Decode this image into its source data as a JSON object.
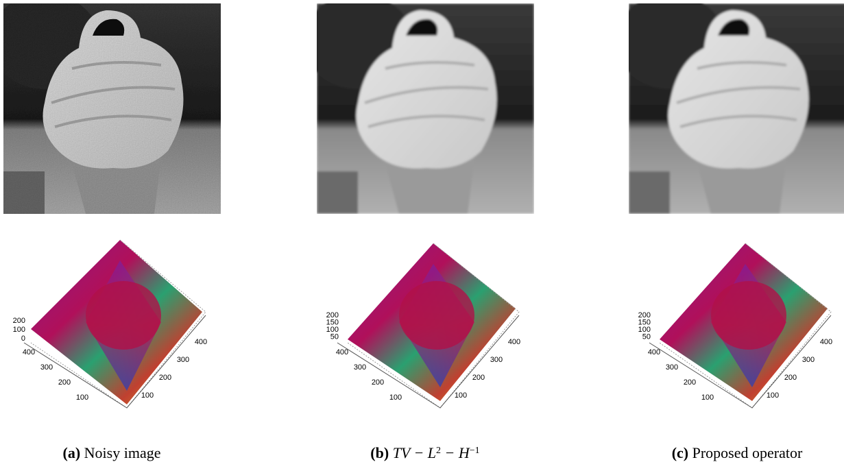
{
  "panels": [
    {
      "label": "(a)",
      "caption_parts": [
        {
          "text": "Noisy image"
        }
      ],
      "z_ticks": [
        200,
        100,
        0
      ],
      "left_ticks": [
        400,
        300,
        200,
        100
      ],
      "right_ticks": [
        400,
        300,
        200,
        100
      ]
    },
    {
      "label": "(b)",
      "caption_parts": [
        {
          "text": "TV − L"
        },
        {
          "text": "2",
          "sup": true
        },
        {
          "text": " − H"
        },
        {
          "text": "−1",
          "sup": true
        }
      ],
      "z_ticks": [
        200,
        150,
        100,
        50
      ],
      "left_ticks": [
        400,
        300,
        200,
        100
      ],
      "right_ticks": [
        400,
        300,
        200,
        100
      ]
    },
    {
      "label": "(c)",
      "caption_parts": [
        {
          "text": "Proposed operator"
        }
      ],
      "z_ticks": [
        200,
        150,
        100,
        50
      ],
      "left_ticks": [
        400,
        300,
        200,
        100
      ],
      "right_ticks": [
        400,
        300,
        200,
        100
      ]
    }
  ]
}
